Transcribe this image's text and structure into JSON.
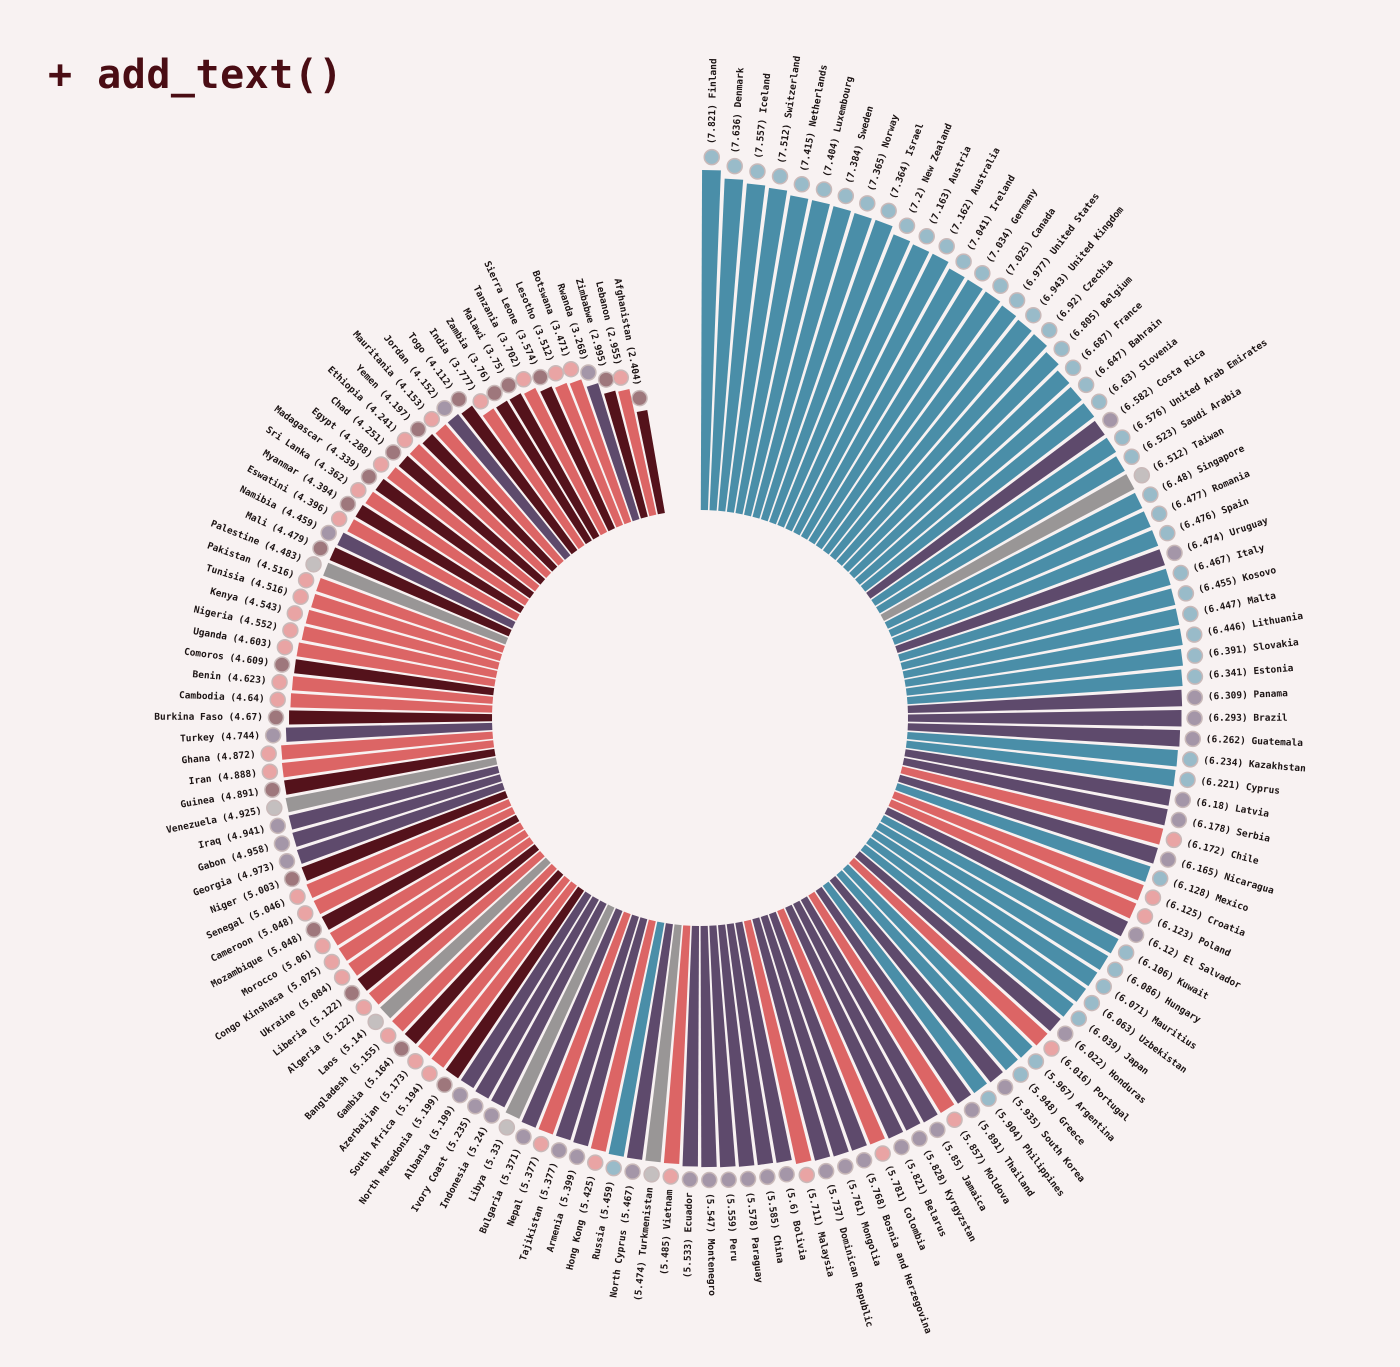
{
  "header": {
    "title": "+ add_text()"
  },
  "colors": {
    "background": "#f8f2f2",
    "top": "#4a8ea8",
    "mid": "#5e4a6c",
    "low": "#dc6565",
    "bottom": "#54121b",
    "no_region": "#999696",
    "flag_ring": "#c9b9b9"
  },
  "chart_data": {
    "type": "bar",
    "layout": "circular",
    "title": "",
    "xlabel": "",
    "ylabel": "",
    "ylim": [
      0,
      7.821
    ],
    "grid": false,
    "legend": "none",
    "color_groups": [
      "top",
      "mid",
      "low",
      "bottom",
      "no_region"
    ],
    "countries": [
      {
        "name": "Finland",
        "value": 7.821,
        "group": "top",
        "label": "(7.821) Finland"
      },
      {
        "name": "Denmark",
        "value": 7.636,
        "group": "top",
        "label": "(7.636) Denmark"
      },
      {
        "name": "Iceland",
        "value": 7.557,
        "group": "top",
        "label": "(7.557) Iceland"
      },
      {
        "name": "Switzerland",
        "value": 7.512,
        "group": "top",
        "label": "(7.512) Switzerland"
      },
      {
        "name": "Netherlands",
        "value": 7.415,
        "group": "top",
        "label": "(7.415) Netherlands"
      },
      {
        "name": "Luxembourg",
        "value": 7.404,
        "group": "top",
        "label": "(7.404) Luxembourg"
      },
      {
        "name": "Sweden",
        "value": 7.384,
        "group": "top",
        "label": "(7.384) Sweden"
      },
      {
        "name": "Norway",
        "value": 7.365,
        "group": "top",
        "label": "(7.365) Norway"
      },
      {
        "name": "Israel",
        "value": 7.364,
        "group": "top",
        "label": "(7.364) Israel"
      },
      {
        "name": "New Zealand",
        "value": 7.2,
        "group": "top",
        "label": "(7.2) New Zealand"
      },
      {
        "name": "Austria",
        "value": 7.163,
        "group": "top",
        "label": "(7.163) Austria"
      },
      {
        "name": "Australia",
        "value": 7.162,
        "group": "top",
        "label": "(7.162) Australia"
      },
      {
        "name": "Ireland",
        "value": 7.041,
        "group": "top",
        "label": "(7.041) Ireland"
      },
      {
        "name": "Germany",
        "value": 7.034,
        "group": "top",
        "label": "(7.034) Germany"
      },
      {
        "name": "Canada",
        "value": 7.025,
        "group": "top",
        "label": "(7.025) Canada"
      },
      {
        "name": "United States",
        "value": 6.977,
        "group": "top",
        "label": "(6.977) United States"
      },
      {
        "name": "United Kingdom",
        "value": 6.943,
        "group": "top",
        "label": "(6.943) United Kingdom"
      },
      {
        "name": "Czechia",
        "value": 6.92,
        "group": "top",
        "label": "(6.92) Czechia"
      },
      {
        "name": "Belgium",
        "value": 6.805,
        "group": "top",
        "label": "(6.805) Belgium"
      },
      {
        "name": "France",
        "value": 6.687,
        "group": "top",
        "label": "(6.687) France"
      },
      {
        "name": "Bahrain",
        "value": 6.647,
        "group": "top",
        "label": "(6.647) Bahrain"
      },
      {
        "name": "Slovenia",
        "value": 6.63,
        "group": "top",
        "label": "(6.63) Slovenia"
      },
      {
        "name": "Costa Rica",
        "value": 6.582,
        "group": "mid",
        "label": "(6.582) Costa Rica"
      },
      {
        "name": "United Arab Emirates",
        "value": 6.576,
        "group": "top",
        "label": "(6.576) United Arab Emirates"
      },
      {
        "name": "Saudi Arabia",
        "value": 6.523,
        "group": "top",
        "label": "(6.523) Saudi Arabia"
      },
      {
        "name": "Taiwan",
        "value": 6.512,
        "group": "no_region",
        "label": "(6.512) Taiwan"
      },
      {
        "name": "Singapore",
        "value": 6.48,
        "group": "top",
        "label": "(6.48) Singapore"
      },
      {
        "name": "Romania",
        "value": 6.477,
        "group": "top",
        "label": "(6.477) Romania"
      },
      {
        "name": "Spain",
        "value": 6.476,
        "group": "top",
        "label": "(6.476) Spain"
      },
      {
        "name": "Uruguay",
        "value": 6.474,
        "group": "mid",
        "label": "(6.474) Uruguay"
      },
      {
        "name": "Italy",
        "value": 6.467,
        "group": "top",
        "label": "(6.467) Italy"
      },
      {
        "name": "Kosovo",
        "value": 6.455,
        "group": "top",
        "label": "(6.455) Kosovo"
      },
      {
        "name": "Malta",
        "value": 6.447,
        "group": "top",
        "label": "(6.447) Malta"
      },
      {
        "name": "Lithuania",
        "value": 6.446,
        "group": "top",
        "label": "(6.446) Lithuania"
      },
      {
        "name": "Slovakia",
        "value": 6.391,
        "group": "top",
        "label": "(6.391) Slovakia"
      },
      {
        "name": "Estonia",
        "value": 6.341,
        "group": "top",
        "label": "(6.341) Estonia"
      },
      {
        "name": "Panama",
        "value": 6.309,
        "group": "mid",
        "label": "(6.309) Panama"
      },
      {
        "name": "Brazil",
        "value": 6.293,
        "group": "mid",
        "label": "(6.293) Brazil"
      },
      {
        "name": "Guatemala",
        "value": 6.262,
        "group": "mid",
        "label": "(6.262) Guatemala"
      },
      {
        "name": "Kazakhstan",
        "value": 6.234,
        "group": "top",
        "label": "(6.234) Kazakhstan"
      },
      {
        "name": "Cyprus",
        "value": 6.221,
        "group": "top",
        "label": "(6.221) Cyprus"
      },
      {
        "name": "Latvia",
        "value": 6.18,
        "group": "mid",
        "label": "(6.18) Latvia"
      },
      {
        "name": "Serbia",
        "value": 6.178,
        "group": "mid",
        "label": "(6.178) Serbia"
      },
      {
        "name": "Chile",
        "value": 6.172,
        "group": "low",
        "label": "(6.172) Chile"
      },
      {
        "name": "Nicaragua",
        "value": 6.165,
        "group": "mid",
        "label": "(6.165) Nicaragua"
      },
      {
        "name": "Mexico",
        "value": 6.128,
        "group": "top",
        "label": "(6.128) Mexico"
      },
      {
        "name": "Croatia",
        "value": 6.125,
        "group": "low",
        "label": "(6.125) Croatia"
      },
      {
        "name": "Poland",
        "value": 6.123,
        "group": "low",
        "label": "(6.123) Poland"
      },
      {
        "name": "El Salvador",
        "value": 6.12,
        "group": "mid",
        "label": "(6.12) El Salvador"
      },
      {
        "name": "Kuwait",
        "value": 6.106,
        "group": "top",
        "label": "(6.106) Kuwait"
      },
      {
        "name": "Hungary",
        "value": 6.086,
        "group": "top",
        "label": "(6.086) Hungary"
      },
      {
        "name": "Mauritius",
        "value": 6.071,
        "group": "top",
        "label": "(6.071) Mauritius"
      },
      {
        "name": "Uzbekistan",
        "value": 6.063,
        "group": "top",
        "label": "(6.063) Uzbekistan"
      },
      {
        "name": "Japan",
        "value": 6.039,
        "group": "top",
        "label": "(6.039) Japan"
      },
      {
        "name": "Honduras",
        "value": 6.022,
        "group": "mid",
        "label": "(6.022) Honduras"
      },
      {
        "name": "Portugal",
        "value": 6.016,
        "group": "low",
        "label": "(6.016) Portugal"
      },
      {
        "name": "Argentina",
        "value": 5.967,
        "group": "top",
        "label": "(5.967) Argentina"
      },
      {
        "name": "Greece",
        "value": 5.948,
        "group": "top",
        "label": "(5.948) Greece"
      },
      {
        "name": "South Korea",
        "value": 5.935,
        "group": "mid",
        "label": "(5.935) South Korea"
      },
      {
        "name": "Philippines",
        "value": 5.904,
        "group": "top",
        "label": "(5.904) Philippines"
      },
      {
        "name": "Thailand",
        "value": 5.891,
        "group": "mid",
        "label": "(5.891) Thailand"
      },
      {
        "name": "Moldova",
        "value": 5.857,
        "group": "low",
        "label": "(5.857) Moldova"
      },
      {
        "name": "Jamaica",
        "value": 5.85,
        "group": "mid",
        "label": "(5.85) Jamaica"
      },
      {
        "name": "Kyrgyzstan",
        "value": 5.828,
        "group": "mid",
        "label": "(5.828) Kyrgyzstan"
      },
      {
        "name": "Belarus",
        "value": 5.821,
        "group": "mid",
        "label": "(5.821) Belarus"
      },
      {
        "name": "Colombia",
        "value": 5.781,
        "group": "low",
        "label": "(5.781) Colombia"
      },
      {
        "name": "Bosnia and Herzegovina",
        "value": 5.768,
        "group": "mid",
        "label": "(5.768) Bosnia and Herzegovina"
      },
      {
        "name": "Mongolia",
        "value": 5.761,
        "group": "mid",
        "label": "(5.761) Mongolia"
      },
      {
        "name": "Dominican Republic",
        "value": 5.737,
        "group": "mid",
        "label": "(5.737) Dominican Republic"
      },
      {
        "name": "Malaysia",
        "value": 5.711,
        "group": "low",
        "label": "(5.711) Malaysia"
      },
      {
        "name": "Bolivia",
        "value": 5.6,
        "group": "mid",
        "label": "(5.6) Bolivia"
      },
      {
        "name": "China",
        "value": 5.585,
        "group": "mid",
        "label": "(5.585) China"
      },
      {
        "name": "Paraguay",
        "value": 5.578,
        "group": "mid",
        "label": "(5.578) Paraguay"
      },
      {
        "name": "Peru",
        "value": 5.559,
        "group": "mid",
        "label": "(5.559) Peru"
      },
      {
        "name": "Montenegro",
        "value": 5.547,
        "group": "mid",
        "label": "(5.547) Montenegro"
      },
      {
        "name": "Ecuador",
        "value": 5.533,
        "group": "mid",
        "label": "(5.533) Ecuador"
      },
      {
        "name": "Vietnam",
        "value": 5.485,
        "group": "low",
        "label": "(5.485) Vietnam"
      },
      {
        "name": "Turkmenistan",
        "value": 5.474,
        "group": "no_region",
        "label": "(5.474) Turkmenistan"
      },
      {
        "name": "North Cyprus",
        "value": 5.467,
        "group": "mid",
        "label": "North Cyprus (5.467)"
      },
      {
        "name": "Russia",
        "value": 5.459,
        "group": "top",
        "label": "Russia (5.459)"
      },
      {
        "name": "Hong Kong",
        "value": 5.425,
        "group": "low",
        "label": "Hong Kong (5.425)"
      },
      {
        "name": "Armenia",
        "value": 5.399,
        "group": "mid",
        "label": "Armenia (5.399)"
      },
      {
        "name": "Tajikistan",
        "value": 5.377,
        "group": "mid",
        "label": "Tajikistan (5.377)"
      },
      {
        "name": "Nepal",
        "value": 5.377,
        "group": "low",
        "label": "Nepal (5.377)"
      },
      {
        "name": "Bulgaria",
        "value": 5.371,
        "group": "mid",
        "label": "Bulgaria (5.371)"
      },
      {
        "name": "Libya",
        "value": 5.33,
        "group": "no_region",
        "label": "Libya (5.33)"
      },
      {
        "name": "Indonesia",
        "value": 5.24,
        "group": "mid",
        "label": "Indonesia (5.24)"
      },
      {
        "name": "Ivory Coast",
        "value": 5.235,
        "group": "mid",
        "label": "Ivory Coast (5.235)"
      },
      {
        "name": "Albania",
        "value": 5.199,
        "group": "mid",
        "label": "Albania (5.199)"
      },
      {
        "name": "North Macedonia",
        "value": 5.199,
        "group": "bottom",
        "label": "North Macedonia (5.199)"
      },
      {
        "name": "South Africa",
        "value": 5.194,
        "group": "low",
        "label": "South Africa (5.194)"
      },
      {
        "name": "Azerbaijan",
        "value": 5.173,
        "group": "low",
        "label": "Azerbaijan (5.173)"
      },
      {
        "name": "Gambia",
        "value": 5.164,
        "group": "bottom",
        "label": "Gambia (5.164)"
      },
      {
        "name": "Bangladesh",
        "value": 5.155,
        "group": "low",
        "label": "Bangladesh (5.155)"
      },
      {
        "name": "Laos",
        "value": 5.14,
        "group": "no_region",
        "label": "Laos (5.14)"
      },
      {
        "name": "Algeria",
        "value": 5.122,
        "group": "low",
        "label": "Algeria (5.122)"
      },
      {
        "name": "Liberia",
        "value": 5.122,
        "group": "bottom",
        "label": "Liberia (5.122)"
      },
      {
        "name": "Ukraine",
        "value": 5.084,
        "group": "low",
        "label": "Ukraine (5.084)"
      },
      {
        "name": "Congo Kinshasa",
        "value": 5.075,
        "group": "low",
        "label": "Congo Kinshasa (5.075)"
      },
      {
        "name": "Morocco",
        "value": 5.06,
        "group": "low",
        "label": "Morocco (5.06)"
      },
      {
        "name": "Mozambique",
        "value": 5.048,
        "group": "bottom",
        "label": "Mozambique (5.048)"
      },
      {
        "name": "Cameroon",
        "value": 5.048,
        "group": "low",
        "label": "Cameroon (5.048)"
      },
      {
        "name": "Senegal",
        "value": 5.046,
        "group": "low",
        "label": "Senegal (5.046)"
      },
      {
        "name": "Niger",
        "value": 5.003,
        "group": "bottom",
        "label": "Niger (5.003)"
      },
      {
        "name": "Georgia",
        "value": 4.973,
        "group": "mid",
        "label": "Georgia (4.973)"
      },
      {
        "name": "Gabon",
        "value": 4.958,
        "group": "mid",
        "label": "Gabon (4.958)"
      },
      {
        "name": "Iraq",
        "value": 4.941,
        "group": "mid",
        "label": "Iraq (4.941)"
      },
      {
        "name": "Venezuela",
        "value": 4.925,
        "group": "no_region",
        "label": "Venezuela (4.925)"
      },
      {
        "name": "Guinea",
        "value": 4.891,
        "group": "bottom",
        "label": "Guinea (4.891)"
      },
      {
        "name": "Iran",
        "value": 4.888,
        "group": "low",
        "label": "Iran (4.888)"
      },
      {
        "name": "Ghana",
        "value": 4.872,
        "group": "low",
        "label": "Ghana (4.872)"
      },
      {
        "name": "Turkey",
        "value": 4.744,
        "group": "mid",
        "label": "Turkey (4.744)"
      },
      {
        "name": "Burkina Faso",
        "value": 4.67,
        "group": "bottom",
        "label": "Burkina Faso (4.67)"
      },
      {
        "name": "Cambodia",
        "value": 4.64,
        "group": "low",
        "label": "Cambodia (4.64)"
      },
      {
        "name": "Benin",
        "value": 4.623,
        "group": "low",
        "label": "Benin (4.623)"
      },
      {
        "name": "Comoros",
        "value": 4.609,
        "group": "bottom",
        "label": "Comoros (4.609)"
      },
      {
        "name": "Uganda",
        "value": 4.603,
        "group": "low",
        "label": "Uganda (4.603)"
      },
      {
        "name": "Nigeria",
        "value": 4.552,
        "group": "low",
        "label": "Nigeria (4.552)"
      },
      {
        "name": "Kenya",
        "value": 4.543,
        "group": "low",
        "label": "Kenya (4.543)"
      },
      {
        "name": "Tunisia",
        "value": 4.516,
        "group": "low",
        "label": "Tunisia (4.516)"
      },
      {
        "name": "Pakistan",
        "value": 4.516,
        "group": "low",
        "label": "Pakistan (4.516)"
      },
      {
        "name": "Palestine",
        "value": 4.483,
        "group": "no_region",
        "label": "Palestine (4.483)"
      },
      {
        "name": "Mali",
        "value": 4.479,
        "group": "bottom",
        "label": "Mali (4.479)"
      },
      {
        "name": "Namibia",
        "value": 4.459,
        "group": "mid",
        "label": "Namibia (4.459)"
      },
      {
        "name": "Eswatini",
        "value": 4.396,
        "group": "low",
        "label": "Eswatini (4.396)"
      },
      {
        "name": "Myanmar",
        "value": 4.394,
        "group": "bottom",
        "label": "Myanmar (4.394)"
      },
      {
        "name": "Sri Lanka",
        "value": 4.362,
        "group": "low",
        "label": "Sri Lanka (4.362)"
      },
      {
        "name": "Madagascar",
        "value": 4.339,
        "group": "bottom",
        "label": "Madagascar (4.339)"
      },
      {
        "name": "Egypt",
        "value": 4.288,
        "group": "low",
        "label": "Egypt (4.288)"
      },
      {
        "name": "Chad",
        "value": 4.251,
        "group": "bottom",
        "label": "Chad (4.251)"
      },
      {
        "name": "Ethiopia",
        "value": 4.241,
        "group": "low",
        "label": "Ethiopia (4.241)"
      },
      {
        "name": "Yemen",
        "value": 4.197,
        "group": "bottom",
        "label": "Yemen (4.197)"
      },
      {
        "name": "Mauritania",
        "value": 4.153,
        "group": "low",
        "label": "Mauritania (4.153)"
      },
      {
        "name": "Jordan",
        "value": 4.152,
        "group": "mid",
        "label": "Jordan (4.152)"
      },
      {
        "name": "Togo",
        "value": 4.112,
        "group": "bottom",
        "label": "Togo (4.112)"
      },
      {
        "name": "India",
        "value": 3.777,
        "group": "low",
        "label": "India (3.777)"
      },
      {
        "name": "Zambia",
        "value": 3.76,
        "group": "bottom",
        "label": "Zambia (3.76)"
      },
      {
        "name": "Malawi",
        "value": 3.75,
        "group": "bottom",
        "label": "Malawi (3.75)"
      },
      {
        "name": "Tanzania",
        "value": 3.702,
        "group": "low",
        "label": "Tanzania (3.702)"
      },
      {
        "name": "Sierra Leone",
        "value": 3.574,
        "group": "bottom",
        "label": "Sierra Leone (3.574)"
      },
      {
        "name": "Lesotho",
        "value": 3.512,
        "group": "low",
        "label": "Lesotho (3.512)"
      },
      {
        "name": "Botswana",
        "value": 3.471,
        "group": "low",
        "label": "Botswana (3.471)"
      },
      {
        "name": "Rwanda",
        "value": 3.268,
        "group": "mid",
        "label": "Rwanda (3.268)"
      },
      {
        "name": "Zimbabwe",
        "value": 2.995,
        "group": "bottom",
        "label": "Zimbabwe (2.995)"
      },
      {
        "name": "Lebanon",
        "value": 2.955,
        "group": "low",
        "label": "Lebanon (2.955)"
      },
      {
        "name": "Afghanistan",
        "value": 2.404,
        "group": "bottom",
        "label": "Afghanistan (2.404)"
      }
    ]
  }
}
